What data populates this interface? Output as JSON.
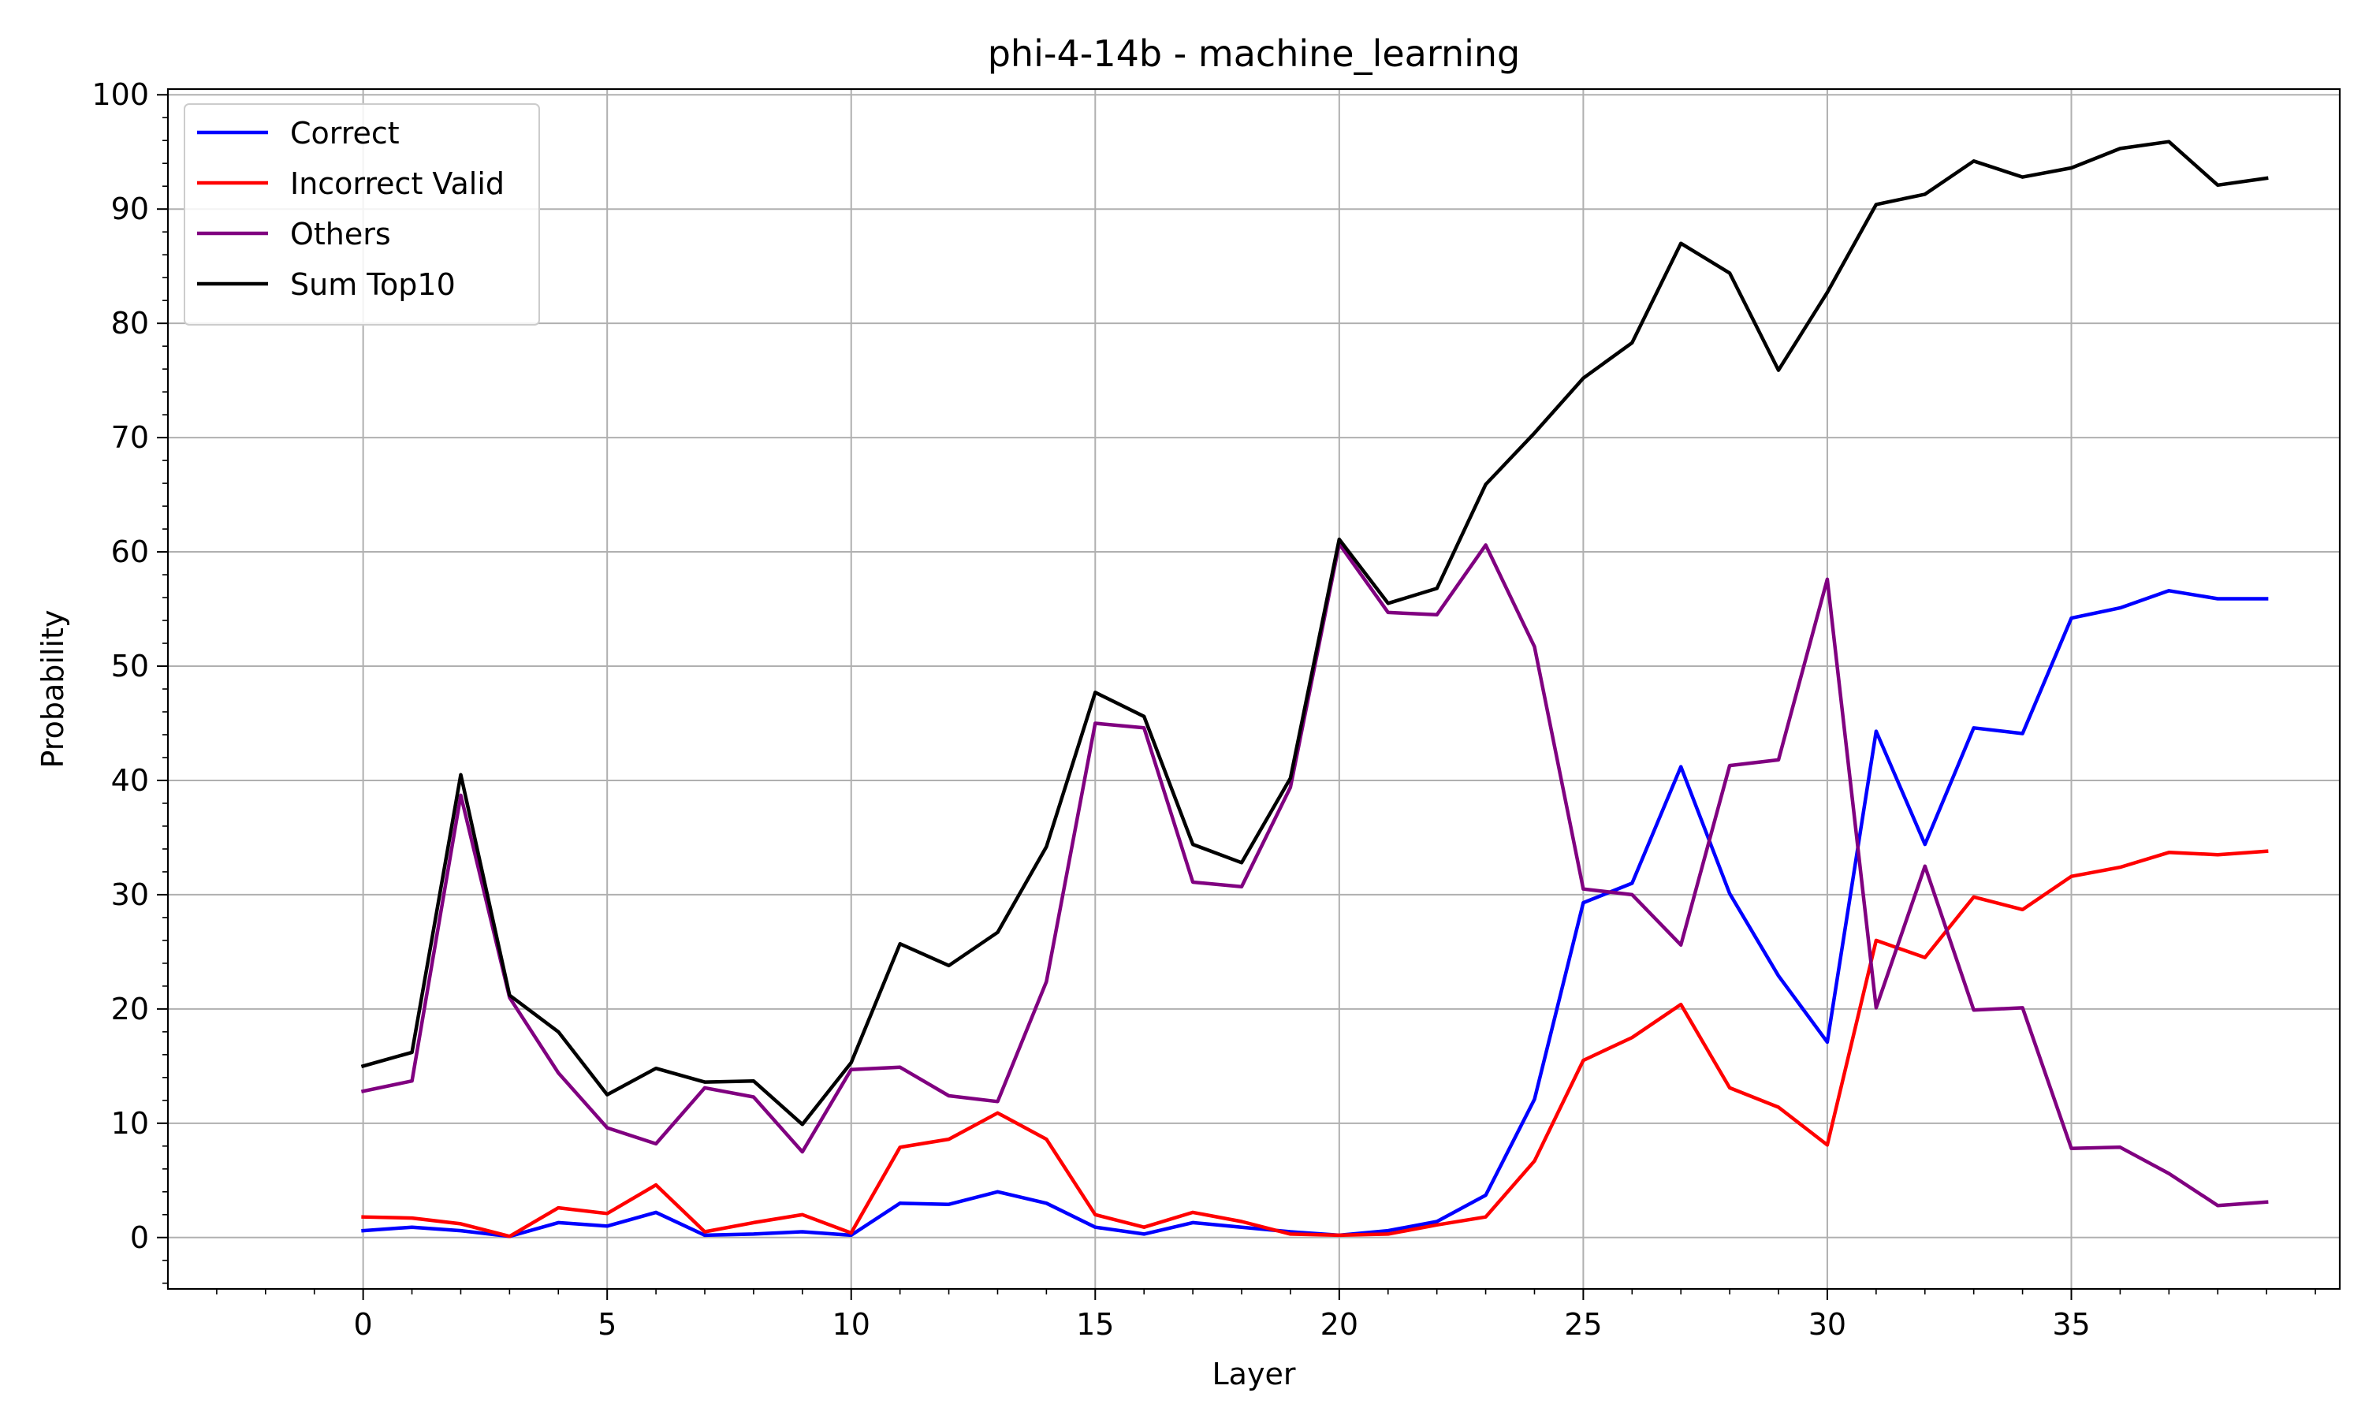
{
  "chart_data": {
    "type": "line",
    "title": "phi-4-14b - machine_learning",
    "xlabel": "Layer",
    "ylabel": "Probability",
    "xlim": [
      -4,
      40.5
    ],
    "ylim": [
      -4.5,
      100.5
    ],
    "x_ticks": [
      0,
      5,
      10,
      15,
      20,
      25,
      30,
      35
    ],
    "y_ticks": [
      0,
      10,
      20,
      30,
      40,
      50,
      60,
      70,
      80,
      90,
      100
    ],
    "grid": true,
    "legend_position": "top-left",
    "x": [
      0,
      1,
      2,
      3,
      4,
      5,
      6,
      7,
      8,
      9,
      10,
      11,
      12,
      13,
      14,
      15,
      16,
      17,
      18,
      19,
      20,
      21,
      22,
      23,
      24,
      25,
      26,
      27,
      28,
      29,
      30,
      31,
      32,
      33,
      34,
      35,
      36,
      37,
      38,
      39
    ],
    "series": [
      {
        "name": "Correct",
        "color": "#0000ff",
        "values": [
          0.6,
          0.9,
          0.6,
          0.1,
          1.3,
          1.0,
          2.2,
          0.2,
          0.3,
          0.5,
          0.2,
          3.0,
          2.9,
          4.0,
          3.0,
          0.9,
          0.3,
          1.3,
          0.9,
          0.5,
          0.2,
          0.6,
          1.4,
          3.7,
          12.1,
          29.3,
          31.0,
          41.2,
          30.1,
          22.9,
          17.1,
          44.3,
          34.4,
          44.6,
          44.1,
          54.2,
          55.1,
          56.6,
          55.9,
          55.9
        ]
      },
      {
        "name": "Incorrect Valid",
        "color": "#ff0000",
        "values": [
          1.8,
          1.7,
          1.2,
          0.1,
          2.6,
          2.1,
          4.6,
          0.5,
          1.3,
          2.0,
          0.4,
          7.9,
          8.6,
          10.9,
          8.6,
          2.0,
          0.9,
          2.2,
          1.4,
          0.3,
          0.2,
          0.3,
          1.1,
          1.8,
          6.7,
          15.5,
          17.5,
          20.4,
          13.1,
          11.4,
          8.1,
          26.0,
          24.5,
          29.8,
          28.7,
          31.6,
          32.4,
          33.7,
          33.5,
          33.8
        ]
      },
      {
        "name": "Others",
        "color": "#800080",
        "values": [
          12.8,
          13.7,
          38.7,
          21.0,
          14.4,
          9.6,
          8.2,
          13.1,
          12.3,
          7.5,
          14.7,
          14.9,
          12.4,
          11.9,
          22.4,
          45.0,
          44.6,
          31.1,
          30.7,
          39.4,
          60.7,
          54.7,
          54.5,
          60.6,
          51.7,
          30.5,
          30.0,
          25.6,
          41.3,
          41.8,
          57.6,
          20.1,
          32.5,
          19.9,
          20.1,
          7.8,
          7.9,
          5.6,
          2.8,
          3.1
        ]
      },
      {
        "name": "Sum Top10",
        "color": "#000000",
        "values": [
          15.0,
          16.2,
          40.5,
          21.2,
          18.0,
          12.5,
          14.8,
          13.6,
          13.7,
          9.9,
          15.3,
          25.7,
          23.8,
          26.7,
          34.2,
          47.7,
          45.6,
          34.4,
          32.8,
          40.2,
          61.1,
          55.5,
          56.8,
          65.9,
          70.4,
          75.2,
          78.3,
          87.0,
          84.4,
          75.9,
          82.7,
          90.4,
          91.3,
          94.2,
          92.8,
          93.6,
          95.3,
          95.9,
          92.1,
          92.7
        ]
      }
    ]
  }
}
